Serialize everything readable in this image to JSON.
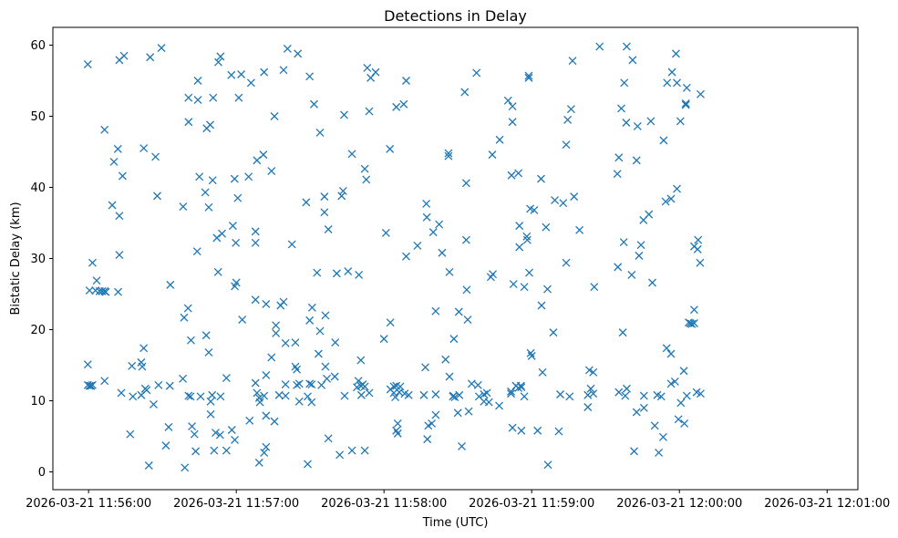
{
  "chart_data": {
    "type": "scatter",
    "title": "Detections in Delay",
    "xlabel": "Time (UTC)",
    "ylabel": "Bistatic Delay (km)",
    "marker": "x",
    "color": "#1f77b4",
    "grid": false,
    "legend": "none",
    "x_unit": "seconds after 2026-03-21 11:56:00",
    "xlim": [
      -14.5,
      312.5
    ],
    "ylim": [
      -2.5,
      62.5
    ],
    "x_ticks": [
      {
        "value": 0,
        "label": "2026-03-21 11:56:00"
      },
      {
        "value": 60,
        "label": "2026-03-21 11:57:00"
      },
      {
        "value": 120,
        "label": "2026-03-21 11:58:00"
      },
      {
        "value": 180,
        "label": "2026-03-21 11:59:00"
      },
      {
        "value": 240,
        "label": "2026-03-21 12:00:00"
      },
      {
        "value": 300,
        "label": "2026-03-21 12:01:00"
      }
    ],
    "y_ticks": [
      0,
      10,
      20,
      30,
      40,
      50,
      60
    ],
    "points": [
      [
        -0.3,
        57.3
      ],
      [
        -0.3,
        15.1
      ],
      [
        -0.3,
        12.2
      ],
      [
        0.4,
        12.1
      ],
      [
        1.0,
        12.1
      ],
      [
        1.6,
        12.2
      ],
      [
        0.4,
        25.5
      ],
      [
        1.6,
        29.4
      ],
      [
        2.8,
        25.5
      ],
      [
        3.3,
        26.9
      ],
      [
        4.5,
        25.4
      ],
      [
        5.5,
        25.4
      ],
      [
        6.5,
        25.4
      ],
      [
        7.0,
        25.3
      ],
      [
        6.5,
        48.1
      ],
      [
        6.5,
        12.8
      ],
      [
        9.6,
        37.5
      ],
      [
        10.3,
        43.6
      ],
      [
        11.9,
        45.4
      ],
      [
        12.5,
        57.9
      ],
      [
        12.5,
        36.0
      ],
      [
        12.5,
        30.5
      ],
      [
        12.0,
        25.3
      ],
      [
        13.3,
        11.1
      ],
      [
        13.8,
        41.6
      ],
      [
        14.4,
        58.5
      ],
      [
        16.9,
        5.3
      ],
      [
        17.6,
        14.9
      ],
      [
        18.0,
        10.6
      ],
      [
        21.4,
        15.4
      ],
      [
        21.4,
        10.8
      ],
      [
        21.8,
        14.8
      ],
      [
        22.4,
        17.4
      ],
      [
        22.4,
        45.5
      ],
      [
        23.0,
        11.7
      ],
      [
        23.6,
        11.5
      ],
      [
        24.5,
        0.9
      ],
      [
        25.0,
        58.3
      ],
      [
        26.4,
        9.5
      ],
      [
        27.2,
        44.3
      ],
      [
        27.9,
        38.8
      ],
      [
        28.4,
        12.2
      ],
      [
        29.6,
        59.6
      ],
      [
        31.4,
        3.7
      ],
      [
        32.5,
        6.3
      ],
      [
        33.0,
        12.1
      ],
      [
        33.2,
        26.3
      ],
      [
        38.3,
        13.1
      ],
      [
        38.4,
        37.3
      ],
      [
        38.8,
        21.7
      ],
      [
        39.1,
        0.6
      ],
      [
        40.4,
        23.0
      ],
      [
        40.6,
        52.6
      ],
      [
        40.6,
        49.2
      ],
      [
        40.6,
        10.7
      ],
      [
        41.4,
        10.6
      ],
      [
        41.6,
        18.5
      ],
      [
        42.0,
        6.4
      ],
      [
        43.0,
        5.3
      ],
      [
        43.5,
        2.9
      ],
      [
        44.1,
        31.0
      ],
      [
        44.4,
        55.0
      ],
      [
        44.4,
        52.3
      ],
      [
        45.0,
        41.5
      ],
      [
        45.5,
        10.6
      ],
      [
        47.4,
        39.3
      ],
      [
        47.8,
        19.2
      ],
      [
        48.0,
        48.3
      ],
      [
        48.8,
        37.2
      ],
      [
        48.8,
        16.8
      ],
      [
        49.4,
        48.8
      ],
      [
        49.6,
        9.9
      ],
      [
        49.6,
        8.1
      ],
      [
        50.2,
        10.8
      ],
      [
        50.4,
        41.0
      ],
      [
        50.6,
        52.6
      ],
      [
        51.0,
        3.0
      ],
      [
        51.6,
        5.5
      ],
      [
        52.1,
        32.9
      ],
      [
        52.6,
        28.1
      ],
      [
        52.7,
        57.6
      ],
      [
        53.4,
        5.2
      ],
      [
        53.6,
        58.4
      ],
      [
        53.6,
        10.6
      ],
      [
        54.2,
        33.5
      ],
      [
        56.0,
        13.2
      ],
      [
        56.0,
        3.0
      ],
      [
        58.0,
        55.8
      ],
      [
        58.2,
        5.9
      ],
      [
        58.6,
        34.6
      ],
      [
        59.3,
        41.2
      ],
      [
        59.4,
        4.5
      ],
      [
        59.4,
        26.1
      ],
      [
        59.8,
        32.2
      ],
      [
        60.0,
        26.6
      ],
      [
        60.6,
        38.5
      ],
      [
        61.0,
        52.6
      ],
      [
        62.0,
        55.9
      ],
      [
        62.4,
        21.4
      ],
      [
        65.0,
        41.5
      ],
      [
        65.4,
        7.2
      ],
      [
        66.0,
        54.7
      ],
      [
        67.8,
        24.2
      ],
      [
        67.8,
        12.5
      ],
      [
        67.8,
        33.8
      ],
      [
        67.8,
        32.2
      ],
      [
        68.4,
        43.8
      ],
      [
        68.4,
        11.1
      ],
      [
        69.3,
        10.4
      ],
      [
        69.3,
        1.3
      ],
      [
        69.6,
        9.8
      ],
      [
        71.0,
        44.6
      ],
      [
        71.3,
        56.2
      ],
      [
        71.3,
        2.7
      ],
      [
        71.3,
        10.7
      ],
      [
        72.1,
        23.6
      ],
      [
        72.1,
        13.6
      ],
      [
        72.1,
        7.9
      ],
      [
        72.1,
        3.5
      ],
      [
        74.3,
        42.3
      ],
      [
        74.3,
        16.1
      ],
      [
        75.5,
        50.0
      ],
      [
        75.5,
        7.1
      ],
      [
        76.1,
        20.6
      ],
      [
        76.1,
        19.5
      ],
      [
        77.4,
        10.8
      ],
      [
        78.0,
        23.4
      ],
      [
        79.2,
        23.9
      ],
      [
        79.2,
        56.5
      ],
      [
        80.0,
        18.1
      ],
      [
        80.0,
        12.3
      ],
      [
        80.0,
        10.7
      ],
      [
        80.8,
        59.5
      ],
      [
        82.6,
        32.0
      ],
      [
        84.0,
        18.2
      ],
      [
        84.0,
        14.8
      ],
      [
        84.6,
        14.4
      ],
      [
        84.6,
        12.2
      ],
      [
        85.0,
        58.8
      ],
      [
        85.6,
        12.4
      ],
      [
        85.6,
        9.9
      ],
      [
        88.4,
        37.9
      ],
      [
        89.0,
        1.1
      ],
      [
        89.0,
        10.6
      ],
      [
        89.8,
        55.6
      ],
      [
        89.8,
        21.3
      ],
      [
        89.8,
        12.4
      ],
      [
        90.6,
        12.3
      ],
      [
        90.6,
        9.8
      ],
      [
        90.8,
        23.1
      ],
      [
        91.6,
        51.7
      ],
      [
        92.8,
        28.0
      ],
      [
        93.4,
        16.6
      ],
      [
        94.0,
        47.7
      ],
      [
        94.0,
        19.8
      ],
      [
        94.6,
        12.2
      ],
      [
        95.8,
        38.7
      ],
      [
        95.8,
        36.5
      ],
      [
        96.2,
        14.8
      ],
      [
        96.2,
        22.0
      ],
      [
        96.8,
        13.1
      ],
      [
        97.4,
        34.1
      ],
      [
        97.4,
        4.7
      ],
      [
        100.0,
        13.4
      ],
      [
        100.2,
        18.2
      ],
      [
        100.8,
        27.9
      ],
      [
        102.0,
        2.4
      ],
      [
        102.8,
        38.8
      ],
      [
        103.4,
        39.5
      ],
      [
        103.8,
        50.2
      ],
      [
        104.0,
        10.7
      ],
      [
        105.4,
        28.2
      ],
      [
        107.0,
        44.7
      ],
      [
        107.0,
        3.0
      ],
      [
        109.0,
        11.9
      ],
      [
        109.6,
        12.8
      ],
      [
        109.8,
        27.7
      ],
      [
        110.6,
        15.7
      ],
      [
        110.6,
        12.1
      ],
      [
        110.8,
        10.8
      ],
      [
        111.4,
        12.3
      ],
      [
        112.2,
        42.6
      ],
      [
        112.2,
        12.0
      ],
      [
        112.2,
        3.0
      ],
      [
        112.8,
        41.1
      ],
      [
        113.2,
        56.8
      ],
      [
        114.0,
        50.7
      ],
      [
        114.0,
        11.1
      ],
      [
        114.6,
        55.4
      ],
      [
        116.6,
        56.2
      ],
      [
        120.0,
        18.7
      ],
      [
        120.8,
        33.6
      ],
      [
        122.4,
        45.4
      ],
      [
        122.6,
        21.0
      ],
      [
        122.6,
        11.6
      ],
      [
        124.0,
        12.0
      ],
      [
        124.0,
        11.1
      ],
      [
        124.6,
        10.5
      ],
      [
        125.0,
        51.3
      ],
      [
        125.0,
        12.1
      ],
      [
        125.0,
        5.8
      ],
      [
        125.6,
        5.4
      ],
      [
        125.6,
        6.8
      ],
      [
        126.2,
        11.2
      ],
      [
        126.6,
        12.0
      ],
      [
        128.0,
        51.7
      ],
      [
        128.4,
        11.0
      ],
      [
        129.0,
        30.3
      ],
      [
        129.0,
        55.0
      ],
      [
        130.0,
        10.8
      ],
      [
        133.6,
        31.8
      ],
      [
        136.2,
        10.8
      ],
      [
        136.8,
        14.7
      ],
      [
        137.2,
        37.7
      ],
      [
        137.4,
        35.8
      ],
      [
        137.6,
        4.6
      ],
      [
        138.0,
        6.5
      ],
      [
        139.4,
        6.8
      ],
      [
        140.0,
        33.7
      ],
      [
        141.0,
        22.6
      ],
      [
        141.0,
        10.9
      ],
      [
        141.0,
        8.0
      ],
      [
        142.4,
        34.8
      ],
      [
        143.6,
        30.8
      ],
      [
        145.0,
        15.8
      ],
      [
        146.2,
        44.8
      ],
      [
        146.2,
        44.4
      ],
      [
        146.6,
        28.1
      ],
      [
        146.6,
        13.4
      ],
      [
        148.0,
        10.6
      ],
      [
        148.2,
        10.7
      ],
      [
        148.4,
        18.7
      ],
      [
        148.8,
        10.5
      ],
      [
        150.0,
        8.3
      ],
      [
        150.4,
        22.5
      ],
      [
        150.6,
        10.8
      ],
      [
        151.6,
        3.6
      ],
      [
        152.8,
        53.4
      ],
      [
        153.4,
        32.6
      ],
      [
        153.4,
        40.6
      ],
      [
        153.6,
        25.6
      ],
      [
        154.0,
        21.4
      ],
      [
        154.4,
        8.5
      ],
      [
        155.6,
        12.4
      ],
      [
        157.6,
        56.1
      ],
      [
        158.2,
        12.2
      ],
      [
        158.6,
        10.6
      ],
      [
        160.6,
        10.9
      ],
      [
        160.6,
        9.9
      ],
      [
        161.8,
        11.1
      ],
      [
        162.6,
        9.8
      ],
      [
        163.4,
        27.4
      ],
      [
        164.0,
        44.6
      ],
      [
        164.2,
        27.8
      ],
      [
        166.8,
        9.3
      ],
      [
        167.0,
        46.7
      ],
      [
        170.4,
        52.2
      ],
      [
        171.6,
        11.3
      ],
      [
        171.6,
        11.0
      ],
      [
        171.8,
        41.7
      ],
      [
        172.2,
        51.4
      ],
      [
        172.2,
        49.2
      ],
      [
        172.2,
        6.2
      ],
      [
        172.6,
        26.4
      ],
      [
        173.6,
        12.1
      ],
      [
        174.6,
        11.8
      ],
      [
        174.6,
        42.0
      ],
      [
        175.0,
        34.6
      ],
      [
        175.0,
        31.6
      ],
      [
        175.6,
        12.1
      ],
      [
        175.8,
        11.9
      ],
      [
        175.8,
        5.8
      ],
      [
        177.0,
        10.6
      ],
      [
        177.0,
        26.0
      ],
      [
        178.0,
        33.1
      ],
      [
        178.2,
        32.6
      ],
      [
        178.8,
        55.7
      ],
      [
        178.8,
        55.4
      ],
      [
        179.0,
        28.0
      ],
      [
        179.4,
        37.0
      ],
      [
        179.6,
        16.7
      ],
      [
        180.0,
        16.3
      ],
      [
        181.0,
        36.8
      ],
      [
        182.4,
        5.8
      ],
      [
        183.8,
        41.2
      ],
      [
        184.0,
        23.4
      ],
      [
        184.4,
        14.0
      ],
      [
        185.8,
        34.4
      ],
      [
        186.4,
        25.7
      ],
      [
        186.6,
        1.0
      ],
      [
        188.8,
        19.6
      ],
      [
        189.4,
        38.2
      ],
      [
        191.0,
        5.7
      ],
      [
        191.6,
        10.9
      ],
      [
        192.8,
        37.8
      ],
      [
        194.0,
        29.4
      ],
      [
        194.0,
        46.0
      ],
      [
        194.6,
        49.5
      ],
      [
        195.4,
        10.6
      ],
      [
        196.0,
        51.0
      ],
      [
        196.6,
        57.8
      ],
      [
        197.2,
        38.7
      ],
      [
        199.4,
        34.0
      ],
      [
        202.8,
        9.1
      ],
      [
        202.8,
        10.8
      ],
      [
        203.4,
        14.3
      ],
      [
        204.0,
        11.7
      ],
      [
        205.0,
        14.0
      ],
      [
        205.0,
        11.0
      ],
      [
        205.4,
        26.0
      ],
      [
        207.6,
        59.8
      ],
      [
        214.8,
        41.9
      ],
      [
        215.0,
        28.8
      ],
      [
        215.4,
        44.2
      ],
      [
        215.4,
        11.2
      ],
      [
        216.4,
        51.1
      ],
      [
        217.0,
        19.6
      ],
      [
        217.4,
        32.3
      ],
      [
        217.6,
        54.7
      ],
      [
        218.0,
        10.7
      ],
      [
        218.4,
        49.1
      ],
      [
        218.6,
        59.8
      ],
      [
        218.6,
        11.7
      ],
      [
        220.6,
        27.7
      ],
      [
        221.0,
        57.9
      ],
      [
        221.6,
        2.9
      ],
      [
        222.6,
        8.4
      ],
      [
        222.6,
        43.8
      ],
      [
        223.0,
        48.6
      ],
      [
        223.6,
        30.4
      ],
      [
        224.4,
        31.9
      ],
      [
        225.4,
        35.4
      ],
      [
        225.6,
        9.0
      ],
      [
        225.6,
        10.7
      ],
      [
        227.6,
        36.2
      ],
      [
        228.4,
        49.3
      ],
      [
        229.0,
        26.6
      ],
      [
        230.0,
        6.5
      ],
      [
        231.0,
        10.8
      ],
      [
        231.6,
        2.7
      ],
      [
        232.6,
        10.6
      ],
      [
        233.4,
        4.9
      ],
      [
        233.6,
        46.6
      ],
      [
        234.4,
        38.0
      ],
      [
        234.8,
        17.4
      ],
      [
        235.0,
        54.7
      ],
      [
        236.6,
        12.4
      ],
      [
        236.6,
        38.4
      ],
      [
        236.6,
        16.6
      ],
      [
        237.0,
        56.2
      ],
      [
        238.2,
        12.7
      ],
      [
        238.6,
        58.8
      ],
      [
        239.0,
        54.7
      ],
      [
        239.0,
        39.8
      ],
      [
        239.6,
        7.4
      ],
      [
        240.4,
        49.3
      ],
      [
        240.6,
        9.7
      ],
      [
        241.8,
        14.2
      ],
      [
        242.0,
        6.8
      ],
      [
        242.6,
        51.8
      ],
      [
        242.6,
        51.6
      ],
      [
        243.0,
        54.0
      ],
      [
        243.0,
        10.7
      ],
      [
        243.8,
        21.0
      ],
      [
        244.4,
        20.9
      ],
      [
        245.0,
        20.8
      ],
      [
        246.0,
        31.7
      ],
      [
        246.0,
        20.9
      ],
      [
        246.0,
        22.8
      ],
      [
        247.0,
        11.2
      ],
      [
        247.4,
        31.3
      ],
      [
        247.6,
        32.6
      ],
      [
        248.4,
        29.4
      ],
      [
        248.6,
        53.1
      ],
      [
        248.6,
        11.0
      ]
    ]
  }
}
